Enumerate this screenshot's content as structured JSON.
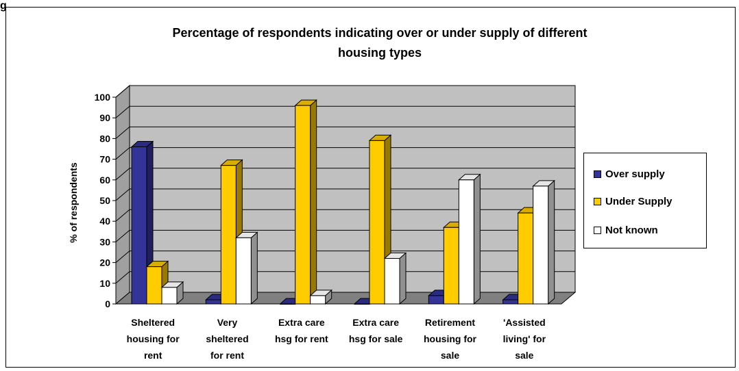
{
  "page_glyph": "g",
  "chart_data": {
    "type": "bar",
    "title_lines": [
      "Percentage of respondents indicating over or under supply of different",
      "housing types"
    ],
    "ylabel": "% of respondents",
    "xlabel": "",
    "ylim": [
      0,
      100
    ],
    "yticks": [
      0,
      10,
      20,
      30,
      40,
      50,
      60,
      70,
      80,
      90,
      100
    ],
    "grid": true,
    "legend_position": "right",
    "categories": [
      [
        "Sheltered",
        "housing for",
        "rent"
      ],
      [
        "Very",
        "sheltered",
        "for rent"
      ],
      [
        "Extra care",
        "hsg for rent"
      ],
      [
        "Extra care",
        "hsg for sale"
      ],
      [
        "Retirement",
        "housing for",
        "sale"
      ],
      [
        "'Assisted",
        "living' for",
        "sale"
      ]
    ],
    "series": [
      {
        "name": "Over supply",
        "color": "#333399",
        "values": [
          76,
          2,
          0,
          0,
          4,
          2
        ]
      },
      {
        "name": "Under Supply",
        "color": "#ffcc00",
        "values": [
          18,
          67,
          96,
          79,
          37,
          44
        ]
      },
      {
        "name": "Not known",
        "color": "#ffffff",
        "values": [
          8,
          32,
          4,
          22,
          60,
          57
        ]
      }
    ],
    "colors": {
      "wall": "#c0c0c0",
      "floor": "#808080",
      "grid": "#000000"
    }
  }
}
